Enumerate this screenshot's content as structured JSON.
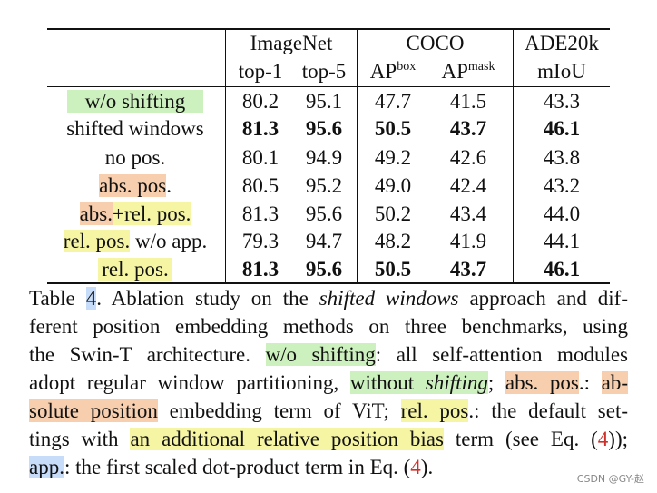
{
  "table": {
    "header": {
      "groups": [
        {
          "label": "ImageNet"
        },
        {
          "label": "COCO"
        },
        {
          "label": "ADE20k"
        }
      ],
      "sub": [
        "top-1",
        "top-5",
        "AP",
        "box",
        "AP",
        "mask",
        "mIoU"
      ]
    },
    "rows": [
      {
        "label": "w/o shifting",
        "v": [
          "80.2",
          "95.1",
          "47.7",
          "41.5",
          "43.3"
        ],
        "bold": false
      },
      {
        "label": "shifted windows",
        "v": [
          "81.3",
          "95.6",
          "50.5",
          "43.7",
          "46.1"
        ],
        "bold": true
      },
      {
        "label": "no pos.",
        "v": [
          "80.1",
          "94.9",
          "49.2",
          "42.6",
          "43.8"
        ],
        "bold": false
      },
      {
        "label_parts": [
          "abs. pos",
          "."
        ],
        "v": [
          "80.5",
          "95.2",
          "49.0",
          "42.4",
          "43.2"
        ],
        "bold": false
      },
      {
        "label_parts": [
          "abs.",
          "+rel. pos."
        ],
        "v": [
          "81.3",
          "95.6",
          "50.2",
          "43.4",
          "44.0"
        ],
        "bold": false
      },
      {
        "label_parts": [
          "rel. pos.",
          " w/o app."
        ],
        "v": [
          "79.3",
          "94.7",
          "48.2",
          "41.9",
          "44.1"
        ],
        "bold": false
      },
      {
        "label": "rel. pos.",
        "v": [
          "81.3",
          "95.6",
          "50.5",
          "43.7",
          "46.1"
        ],
        "bold": true
      }
    ]
  },
  "caption": {
    "l1": [
      "Table ",
      "4",
      ". Ablation study on the ",
      "shifted windows",
      " approach and dif-"
    ],
    "l2": "ferent position embedding methods on three benchmarks, using",
    "l3": [
      "the Swin-T architecture. ",
      " w/o shifting",
      ": all self-attention modules"
    ],
    "l4": [
      "adopt regular window partitioning, ",
      "without ",
      "shifting",
      "; ",
      "abs. pos",
      ".: ",
      "ab-"
    ],
    "l5": [
      "solute position",
      " embedding term of ViT; ",
      "rel. pos",
      ".: the default set-"
    ],
    "l6": [
      "tings with ",
      "an additional relative position bias",
      " term (see Eq. (",
      "4",
      "));"
    ],
    "l7": [
      "app.",
      ": the first scaled dot-product term in Eq. (",
      "4",
      ")."
    ]
  },
  "watermark": "CSDN @GY-赵",
  "colors": {
    "highlight_green": "#cdf0bf",
    "highlight_orange": "#f8cfae",
    "highlight_yellow": "#f6f5a4",
    "highlight_blue": "#c7dcf8",
    "ref_red": "#d0302a"
  }
}
